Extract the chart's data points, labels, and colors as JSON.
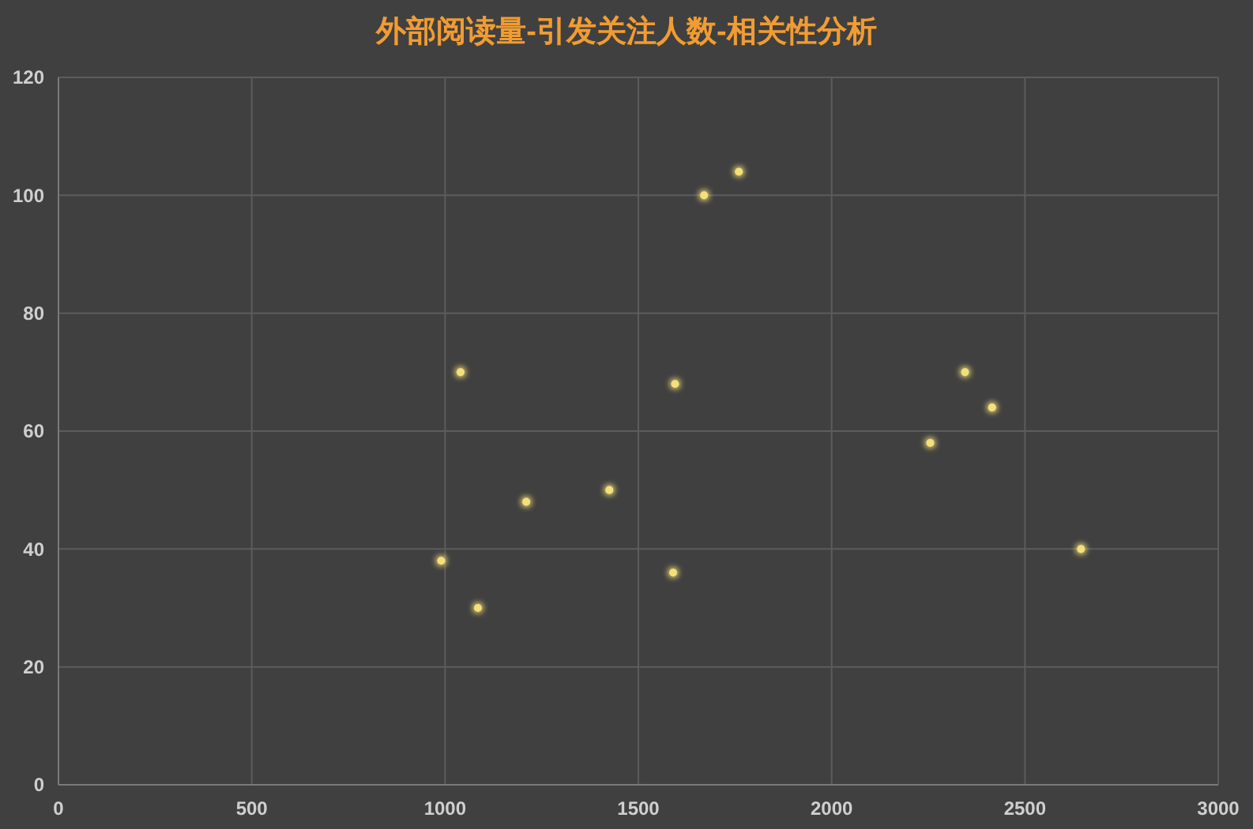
{
  "chart_data": {
    "type": "scatter",
    "title": "外部阅读量-引发关注人数-相关性分析",
    "x": [
      990,
      1040,
      1085,
      1210,
      1425,
      1590,
      1595,
      1670,
      1760,
      2255,
      2345,
      2415,
      2645
    ],
    "values": [
      38,
      70,
      30,
      48,
      50,
      36,
      68,
      100,
      104,
      58,
      70,
      64,
      40
    ],
    "color": "#f4e07a",
    "xlim": [
      0,
      3000
    ],
    "xticks": [
      0,
      500,
      1000,
      1500,
      2000,
      2500,
      3000
    ],
    "ylim": [
      0,
      120
    ],
    "yticks": [
      0,
      20,
      40,
      60,
      80,
      100,
      120
    ],
    "grid": true,
    "marker": "circle"
  }
}
